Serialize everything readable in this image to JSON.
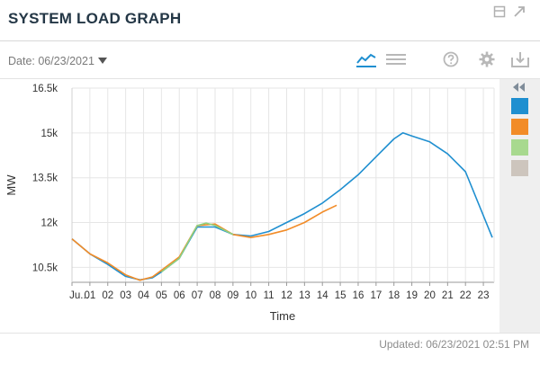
{
  "header": {
    "title": "SYSTEM LOAD GRAPH",
    "icons": [
      "window-toggle-icon",
      "expand-icon"
    ]
  },
  "toolbar": {
    "date_label": "Date: 06/23/2021",
    "icons": [
      "line-chart-icon",
      "table-view-icon",
      "help-icon",
      "settings-icon",
      "download-icon"
    ],
    "active_view": "line-chart"
  },
  "chart_data": {
    "type": "line",
    "xlabel": "Time",
    "ylabel": "MW",
    "x_tick_labels": [
      "Ju...",
      "01",
      "02",
      "03",
      "04",
      "05",
      "06",
      "07",
      "08",
      "09",
      "10",
      "11",
      "12",
      "13",
      "14",
      "15",
      "16",
      "17",
      "18",
      "19",
      "20",
      "21",
      "22",
      "23"
    ],
    "y_tick_labels": [
      "10.5k",
      "12k",
      "13.5k",
      "15k",
      "16.5k"
    ],
    "ylim": [
      10000,
      16500
    ],
    "y_ticks": [
      10500,
      12000,
      13500,
      15000,
      16500
    ],
    "grid": true,
    "series": [
      {
        "color": "#1f8fd0",
        "x": [
          0,
          1,
          2,
          3,
          3.8,
          4.5,
          5,
          6,
          7,
          8,
          9,
          10,
          11,
          12,
          13,
          14,
          15,
          16,
          17,
          18,
          18.5,
          19,
          20,
          21,
          22,
          23.5
        ],
        "y": [
          11450,
          10950,
          10600,
          10200,
          10080,
          10150,
          10350,
          10800,
          11850,
          11850,
          11600,
          11550,
          11700,
          12000,
          12300,
          12650,
          13100,
          13600,
          14200,
          14800,
          15000,
          14900,
          14700,
          14300,
          13700,
          11500
        ]
      },
      {
        "color": "#f28c28",
        "x": [
          0,
          1,
          2,
          3,
          3.8,
          4.5,
          5,
          6,
          7,
          8,
          9,
          10,
          11,
          12,
          13,
          14,
          14.8
        ],
        "y": [
          11450,
          10950,
          10650,
          10250,
          10070,
          10180,
          10400,
          10850,
          11900,
          11950,
          11600,
          11500,
          11600,
          11750,
          12000,
          12350,
          12580
        ]
      },
      {
        "color": "#8fd07f",
        "x": [
          5,
          6,
          7,
          7.5,
          8,
          9
        ],
        "y": [
          10350,
          10800,
          11900,
          11980,
          11900,
          11600
        ]
      }
    ]
  },
  "legend": {
    "swatches": [
      "#1f8fd0",
      "#f28c28",
      "#a8d98f",
      "#cdc5bd"
    ]
  },
  "footer": {
    "updated": "Updated: 06/23/2021 02:51 PM"
  }
}
